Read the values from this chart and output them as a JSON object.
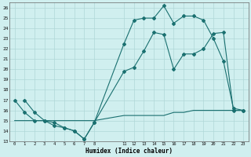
{
  "xlabel": "Humidex (Indice chaleur)",
  "bg_color": "#d0efef",
  "line_color": "#1a7070",
  "grid_color": "#b0d8d8",
  "xlim": [
    -0.5,
    23.5
  ],
  "ylim": [
    13,
    26.5
  ],
  "yticks": [
    13,
    14,
    15,
    16,
    17,
    18,
    19,
    20,
    21,
    22,
    23,
    24,
    25,
    26
  ],
  "xticks": [
    0,
    1,
    2,
    3,
    4,
    5,
    6,
    7,
    8,
    11,
    12,
    13,
    14,
    15,
    16,
    17,
    18,
    19,
    20,
    21,
    22,
    23
  ],
  "line1_x": [
    1,
    2,
    3,
    4,
    5,
    6,
    7,
    8,
    11,
    12,
    13,
    14,
    15,
    16,
    17,
    18,
    19,
    20,
    21,
    22,
    23
  ],
  "line1_y": [
    17.0,
    15.8,
    15.0,
    14.8,
    14.3,
    14.0,
    13.2,
    14.8,
    22.5,
    24.8,
    25.0,
    25.0,
    26.2,
    24.5,
    25.2,
    25.2,
    24.8,
    23.0,
    20.8,
    16.2,
    16.0
  ],
  "line2_x": [
    0,
    1,
    2,
    3,
    4,
    5,
    6,
    7,
    8,
    11,
    12,
    13,
    14,
    15,
    16,
    17,
    18,
    19,
    20,
    21,
    22,
    23
  ],
  "line2_y": [
    17.0,
    15.8,
    15.0,
    15.0,
    14.5,
    14.3,
    14.0,
    13.2,
    14.8,
    19.8,
    20.2,
    21.8,
    23.6,
    23.4,
    20.0,
    21.5,
    21.5,
    22.0,
    23.5,
    23.6,
    16.0,
    16.0
  ],
  "line3_x": [
    0,
    1,
    2,
    3,
    4,
    5,
    6,
    7,
    8,
    11,
    12,
    13,
    14,
    15,
    16,
    17,
    18,
    19,
    20,
    21,
    22,
    23
  ],
  "line3_y": [
    15.0,
    15.0,
    15.0,
    15.0,
    15.0,
    15.0,
    15.0,
    15.0,
    15.0,
    15.5,
    15.5,
    15.5,
    15.5,
    15.5,
    15.8,
    15.8,
    16.0,
    16.0,
    16.0,
    16.0,
    16.0,
    16.0
  ]
}
